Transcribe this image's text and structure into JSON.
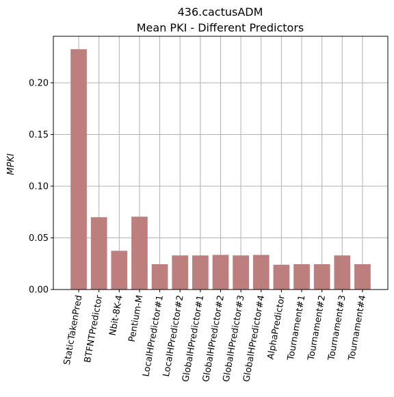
{
  "chart_data": {
    "type": "bar",
    "title": "436.cactusADM",
    "subtitle": "Mean PKI - Different Predictors",
    "xlabel": "",
    "ylabel": "MPKI",
    "ylim": [
      0,
      0.245
    ],
    "yticks": [
      "0.00",
      "0.05",
      "0.10",
      "0.15",
      "0.20"
    ],
    "grid": true,
    "bar_color": "#bc7f7e",
    "categories": [
      "StaticTakenPred",
      "BTFNTPredictor",
      "Nbit-8K-4",
      "Pentium-M",
      "LocalHPredictor#1",
      "LocalHPredictor#2",
      "GlobalHPredictor#1",
      "GlobalHPredictor#2",
      "GlobalHPredictor#3",
      "GlobalHPredictor#4",
      "AlphaPredictor",
      "Tournament#1",
      "Tournament#2",
      "Tournament#3",
      "Tournament#4"
    ],
    "values": [
      0.2325,
      0.07,
      0.0375,
      0.0705,
      0.0245,
      0.033,
      0.033,
      0.0335,
      0.033,
      0.0335,
      0.024,
      0.0245,
      0.0245,
      0.033,
      0.0245
    ]
  }
}
